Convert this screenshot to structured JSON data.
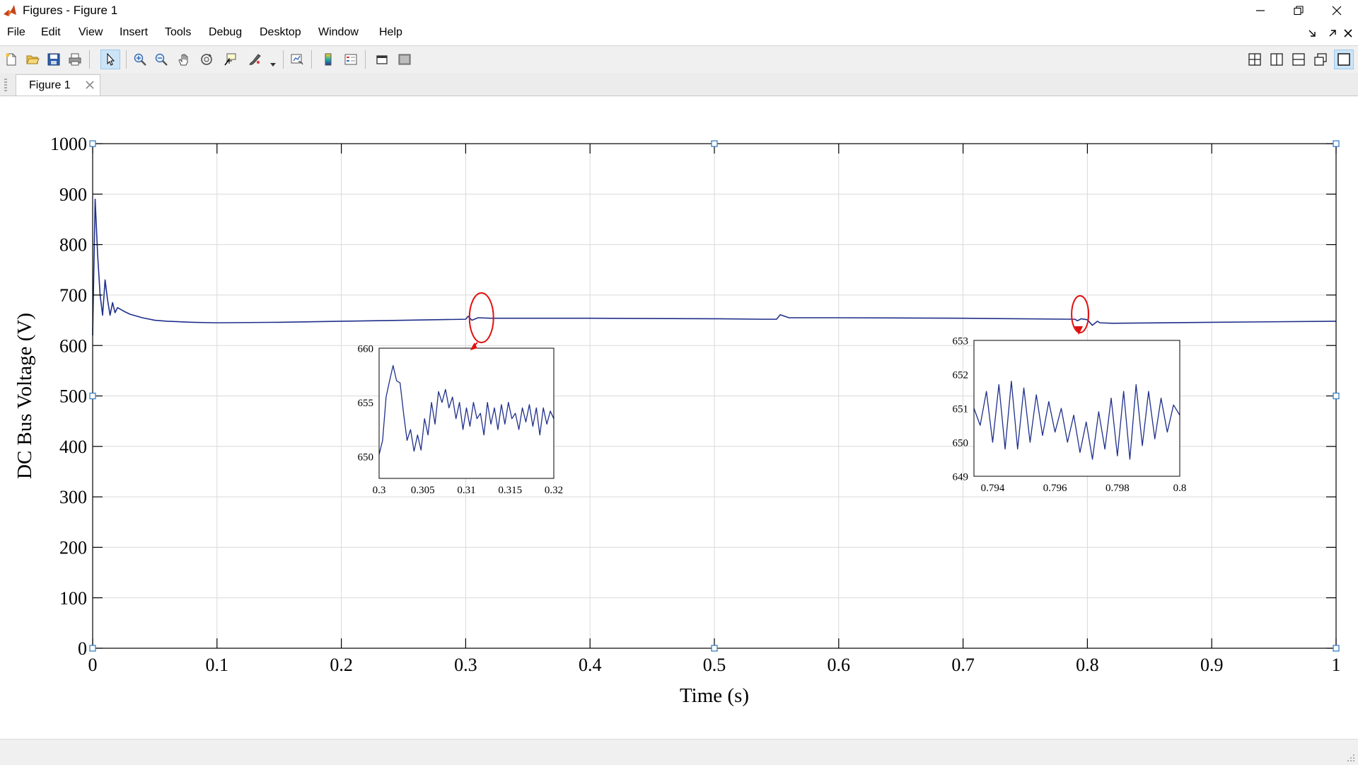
{
  "window": {
    "title": "Figures - Figure 1",
    "icon": "matlab-icon"
  },
  "window_controls": [
    "minimize-icon",
    "restore-icon",
    "close-icon"
  ],
  "menu": [
    "File",
    "Edit",
    "View",
    "Insert",
    "Tools",
    "Debug",
    "Desktop",
    "Window",
    "Help"
  ],
  "toolbar": {
    "buttons": [
      "new-figure-icon",
      "open-icon",
      "save-icon",
      "print-icon",
      "edit-plot-icon",
      "zoom-in-icon",
      "zoom-out-icon",
      "pan-icon",
      "rotate-3d-icon",
      "data-cursor-icon",
      "brush-icon",
      "link-plot-icon",
      "colorbar-icon",
      "legend-icon",
      "hide-plot-tools-icon",
      "show-plot-tools-icon"
    ],
    "layout_buttons": [
      "tile-grid-icon",
      "left-right-split-icon",
      "top-bottom-split-icon",
      "float-icon",
      "maximize-icon"
    ]
  },
  "tabs": [
    {
      "label": "Figure 1"
    }
  ],
  "colors": {
    "line": "#1f2f8a",
    "annotation": "#e01010",
    "grid": "#d9d9d9",
    "axis": "#000000"
  },
  "chart_data": [
    {
      "type": "line",
      "xlabel": "Time (s)",
      "ylabel": "DC Bus Voltage (V)",
      "xlim": [
        0,
        1
      ],
      "ylim": [
        0,
        1000
      ],
      "xticks": [
        "0",
        "0.1",
        "0.2",
        "0.3",
        "0.4",
        "0.5",
        "0.6",
        "0.7",
        "0.8",
        "0.9",
        "1"
      ],
      "yticks": [
        "0",
        "100",
        "200",
        "300",
        "400",
        "500",
        "600",
        "700",
        "800",
        "900",
        "1000"
      ],
      "grid": true,
      "series": [
        {
          "x": [
            0,
            0.002,
            0.004,
            0.006,
            0.008,
            0.01,
            0.012,
            0.014,
            0.016,
            0.018,
            0.02,
            0.025,
            0.03,
            0.04,
            0.05,
            0.06,
            0.08,
            0.1,
            0.15,
            0.2,
            0.25,
            0.3,
            0.302,
            0.305,
            0.31,
            0.32,
            0.4,
            0.5,
            0.54,
            0.55,
            0.553,
            0.56,
            0.6,
            0.7,
            0.79,
            0.792,
            0.795,
            0.8,
            0.804,
            0.808,
            0.81,
            0.82,
            0.9,
            1.0
          ],
          "y": [
            620,
            890,
            780,
            700,
            660,
            730,
            690,
            660,
            685,
            665,
            675,
            668,
            662,
            655,
            650,
            648,
            646,
            645,
            646,
            648,
            650,
            652,
            658,
            650,
            655,
            654,
            654,
            653,
            652,
            652,
            661,
            655,
            655,
            654,
            652,
            649,
            653,
            651,
            640,
            648,
            645,
            644,
            646,
            648
          ]
        }
      ],
      "annotations": [
        {
          "shape": "ellipse",
          "cx": 0.307,
          "cy": 655
        },
        {
          "shape": "ellipse",
          "cx": 0.793,
          "cy": 655
        }
      ]
    },
    {
      "type": "line",
      "role": "inset-zoom",
      "xlim": [
        0.3,
        0.32
      ],
      "ylim": [
        648,
        660
      ],
      "xticks": [
        "0.3",
        "0.305",
        "0.31",
        "0.315",
        "0.32"
      ],
      "yticks": [
        "650",
        "655",
        "660"
      ],
      "series": [
        {
          "x": [
            0.3,
            0.3004,
            0.3008,
            0.3012,
            0.3016,
            0.302,
            0.3024,
            0.3028,
            0.3032,
            0.3036,
            0.304,
            0.3044,
            0.3048,
            0.3052,
            0.3056,
            0.306,
            0.3064,
            0.3068,
            0.3072,
            0.3076,
            0.308,
            0.3084,
            0.3088,
            0.3092,
            0.3096,
            0.31,
            0.3104,
            0.3108,
            0.3112,
            0.3116,
            0.312,
            0.3124,
            0.3128,
            0.3132,
            0.3136,
            0.314,
            0.3144,
            0.3148,
            0.3152,
            0.3156,
            0.316,
            0.3164,
            0.3168,
            0.3172,
            0.3176,
            0.318,
            0.3184,
            0.3188,
            0.3192,
            0.3196,
            0.32
          ],
          "y": [
            650.2,
            651.5,
            655.5,
            657.0,
            658.4,
            657.0,
            656.8,
            654.0,
            651.5,
            652.5,
            650.5,
            652.0,
            650.6,
            653.5,
            652.0,
            655.0,
            653.0,
            656.0,
            655.0,
            656.2,
            654.5,
            655.5,
            653.5,
            655.0,
            652.5,
            654.5,
            652.8,
            655.0,
            653.5,
            654.0,
            652.0,
            655.0,
            653.0,
            654.5,
            652.5,
            654.8,
            653.0,
            655.0,
            653.5,
            654.0,
            652.5,
            654.5,
            653.2,
            654.8,
            652.8,
            654.5,
            652.0,
            654.5,
            653.0,
            654.2,
            653.5
          ]
        }
      ]
    },
    {
      "type": "line",
      "role": "inset-zoom",
      "xlim": [
        0.7934,
        0.8
      ],
      "ylim": [
        649,
        653
      ],
      "xticks": [
        "0.794",
        "0.796",
        "0.798",
        "0.8"
      ],
      "yticks": [
        "649",
        "650",
        "651",
        "652",
        "653"
      ],
      "series": [
        {
          "x": [
            0.7934,
            0.7936,
            0.7938,
            0.794,
            0.7942,
            0.7944,
            0.7946,
            0.7948,
            0.795,
            0.7952,
            0.7954,
            0.7956,
            0.7958,
            0.796,
            0.7962,
            0.7964,
            0.7966,
            0.7968,
            0.797,
            0.7972,
            0.7974,
            0.7976,
            0.7978,
            0.798,
            0.7982,
            0.7984,
            0.7986,
            0.7988,
            0.799,
            0.7992,
            0.7994,
            0.7996,
            0.7998,
            0.8
          ],
          "y": [
            651.0,
            650.5,
            651.5,
            650.0,
            651.7,
            649.8,
            651.8,
            649.8,
            651.6,
            650.0,
            651.4,
            650.2,
            651.2,
            650.3,
            651.0,
            650.0,
            650.8,
            649.7,
            650.6,
            649.5,
            650.9,
            649.8,
            651.3,
            649.6,
            651.5,
            649.5,
            651.7,
            649.9,
            651.5,
            650.1,
            651.3,
            650.3,
            651.1,
            650.8
          ]
        }
      ]
    }
  ]
}
